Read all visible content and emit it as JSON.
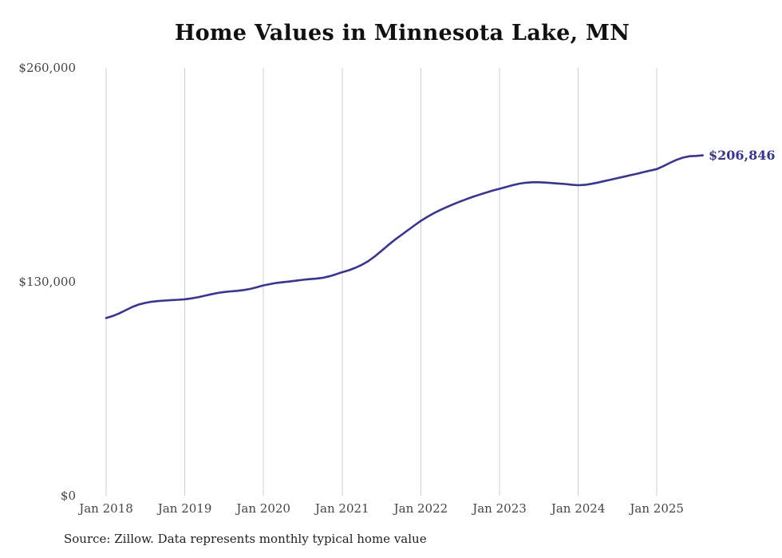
{
  "title": "Home Values in Minnesota Lake, MN",
  "source_note": "Source: Zillow. Data represents monthly typical home value",
  "latest_value_label": "$206,846",
  "colors": {
    "line": "#3533a3",
    "grid": "#cccccc",
    "axis_text": "#444444"
  },
  "chart_data": {
    "type": "line",
    "title": "Home Values in Minnesota Lake, MN",
    "frequency": "monthly",
    "x_start": "2018-01",
    "x_end": "2025-08",
    "x_tick_labels": [
      "Jan 2018",
      "Jan 2019",
      "Jan 2020",
      "Jan 2021",
      "Jan 2022",
      "Jan 2023",
      "Jan 2024",
      "Jan 2025"
    ],
    "y_ticks": [
      {
        "label": "$0",
        "value": 0
      },
      {
        "label": "$130,000",
        "value": 130000
      },
      {
        "label": "$260,000",
        "value": 260000
      }
    ],
    "ylim": [
      0,
      260000
    ],
    "grid": "vertical-only",
    "legend": "none",
    "series": [
      {
        "name": "Typical home value",
        "latest_label": "$206,846",
        "values": [
          108000,
          109200,
          110800,
          112800,
          114700,
          116200,
          117200,
          117900,
          118300,
          118600,
          118900,
          119100,
          119400,
          119900,
          120600,
          121500,
          122400,
          123200,
          123800,
          124200,
          124500,
          125000,
          125700,
          126700,
          127800,
          128600,
          129300,
          129800,
          130200,
          130700,
          131200,
          131600,
          131900,
          132400,
          133300,
          134500,
          135800,
          137000,
          138500,
          140300,
          142600,
          145500,
          148800,
          152200,
          155400,
          158400,
          161300,
          164200,
          167000,
          169500,
          171700,
          173700,
          175500,
          177200,
          178800,
          180300,
          181700,
          183000,
          184300,
          185500,
          186500,
          187600,
          188700,
          189600,
          190200,
          190500,
          190500,
          190300,
          190000,
          189700,
          189400,
          189000,
          188700,
          188900,
          189500,
          190300,
          191200,
          192100,
          193000,
          193900,
          194800,
          195700,
          196700,
          197600,
          198500,
          200300,
          202300,
          204100,
          205500,
          206300,
          206500,
          206846
        ]
      }
    ]
  }
}
